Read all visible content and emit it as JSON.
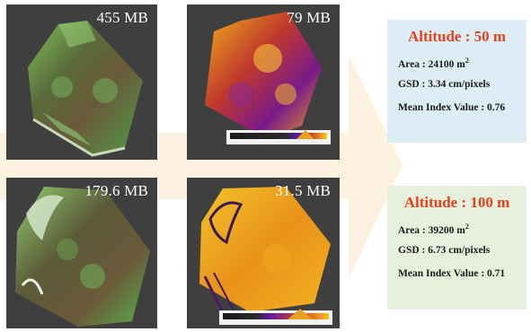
{
  "colors": {
    "tile_bg": "#3f3f3f",
    "arrow": "#fdf2df",
    "title_red": "#e8401c",
    "card_blue": "#dcedf5",
    "card_green": "#e6f0dc"
  },
  "tiles": [
    {
      "size": "455 MB",
      "kind": "rgb"
    },
    {
      "size": "79 MB",
      "kind": "index"
    },
    {
      "size": "179.6 MB",
      "kind": "rgb"
    },
    {
      "size": "31.5 MB",
      "kind": "index"
    }
  ],
  "cards": [
    {
      "title": "Altitude : 50 m",
      "area_label": "Area : 24100 m",
      "area_exp": "2",
      "gsd": "GSD : 3.34 cm/pixels",
      "mean": "Mean Index Value : 0.76"
    },
    {
      "title": "Altitude : 100 m",
      "area_label": "Area : 39200 m",
      "area_exp": "2",
      "gsd": "GSD : 6.73 cm/pixels",
      "mean": "Mean Index Value : 0.71"
    }
  ]
}
